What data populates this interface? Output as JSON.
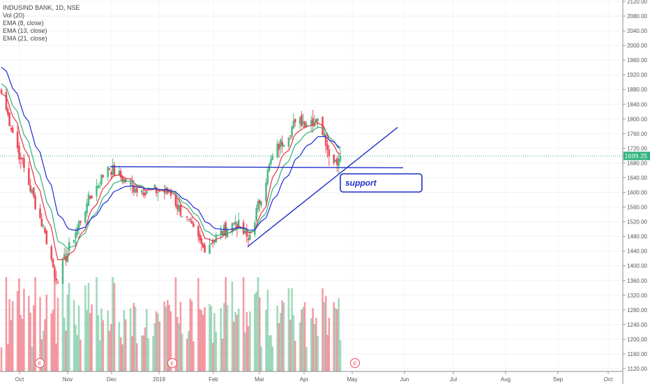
{
  "chart_data": {
    "type": "candlestick",
    "title": "INDUSIND BANK, 1D, NSE",
    "legend": [
      "Vol (20)",
      "EMA (8, close)",
      "EMA (13, close)",
      "EMA (21, close)"
    ],
    "x_ticks": [
      "Oct",
      "Nov",
      "Dec",
      "2019",
      "Feb",
      "Mar",
      "Apr",
      "May",
      "Jun",
      "Jul",
      "Aug",
      "Sep",
      "Oct"
    ],
    "y_ticks": [
      1120,
      1160,
      1200,
      1240,
      1280,
      1320,
      1360,
      1400,
      1440,
      1480,
      1520,
      1560,
      1600,
      1640,
      1680,
      1720,
      1760,
      1800,
      1840,
      1880,
      1920,
      1960,
      2000,
      2040,
      2080,
      2120
    ],
    "ylim": [
      1120,
      2120
    ],
    "last_price_label": "1699.25",
    "last_price": 1699.25,
    "annotation_text": "support",
    "earnings_marker": "E",
    "colors": {
      "up": "#53b987",
      "down": "#eb4d5c",
      "ema8": "#e8303f",
      "ema13": "#2fb27c",
      "ema21": "#1e2bd6",
      "drawing": "#1f2fc8",
      "price_line": "#2fb27c"
    },
    "key_closes": [
      {
        "date": "2018-09-28",
        "close": 1870
      },
      {
        "date": "2018-10-10",
        "close": 1690
      },
      {
        "date": "2018-10-25",
        "close": 1490
      },
      {
        "date": "2018-11-01",
        "close": 1360
      },
      {
        "date": "2018-11-20",
        "close": 1570
      },
      {
        "date": "2018-12-03",
        "close": 1670
      },
      {
        "date": "2018-12-20",
        "close": 1610
      },
      {
        "date": "2019-01-10",
        "close": 1600
      },
      {
        "date": "2019-01-31",
        "close": 1450
      },
      {
        "date": "2019-02-20",
        "close": 1520
      },
      {
        "date": "2019-02-28",
        "close": 1470
      },
      {
        "date": "2019-03-15",
        "close": 1700
      },
      {
        "date": "2019-03-29",
        "close": 1790
      },
      {
        "date": "2019-04-12",
        "close": 1800
      },
      {
        "date": "2019-04-22",
        "close": 1680
      },
      {
        "date": "2019-04-26",
        "close": 1699.25
      }
    ]
  }
}
